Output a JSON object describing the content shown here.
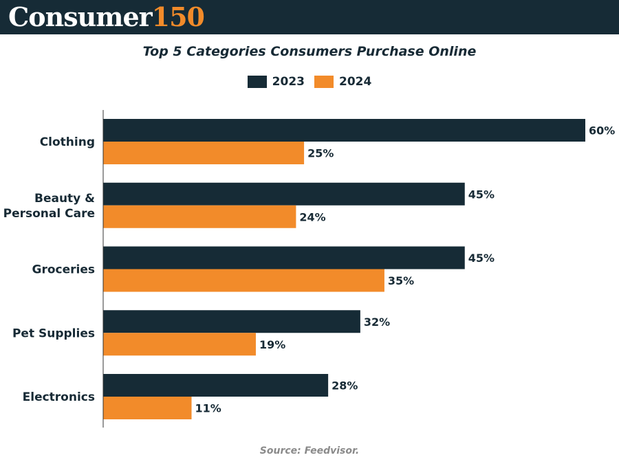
{
  "header": {
    "brand_word": "Consumer",
    "brand_number": "150"
  },
  "colors": {
    "header_bg": "#162b36",
    "series_2023": "#162b36",
    "series_2024": "#f28b2a",
    "text": "#172a35",
    "source_text": "#8a8a8a"
  },
  "chart_data": {
    "type": "bar",
    "orientation": "horizontal",
    "title": "Top 5 Categories Consumers Purchase Online",
    "categories": [
      "Clothing",
      "Beauty & Personal Care",
      "Groceries",
      "Pet Supplies",
      "Electronics"
    ],
    "category_lines": [
      [
        "Clothing"
      ],
      [
        "Beauty &",
        "Personal Care"
      ],
      [
        "Groceries"
      ],
      [
        "Pet Supplies"
      ],
      [
        "Electronics"
      ]
    ],
    "series": [
      {
        "name": "2023",
        "values": [
          60,
          45,
          45,
          32,
          28
        ],
        "labels": [
          "60%",
          "45%",
          "45%",
          "32%",
          "28%"
        ]
      },
      {
        "name": "2024",
        "values": [
          25,
          24,
          35,
          19,
          11
        ],
        "labels": [
          "25%",
          "24%",
          "35%",
          "19%",
          "11%"
        ]
      }
    ],
    "unit": "%",
    "xlim": [
      0,
      60
    ],
    "legend_position": "top-center",
    "grid": false
  },
  "source": "Source: Feedvisor."
}
